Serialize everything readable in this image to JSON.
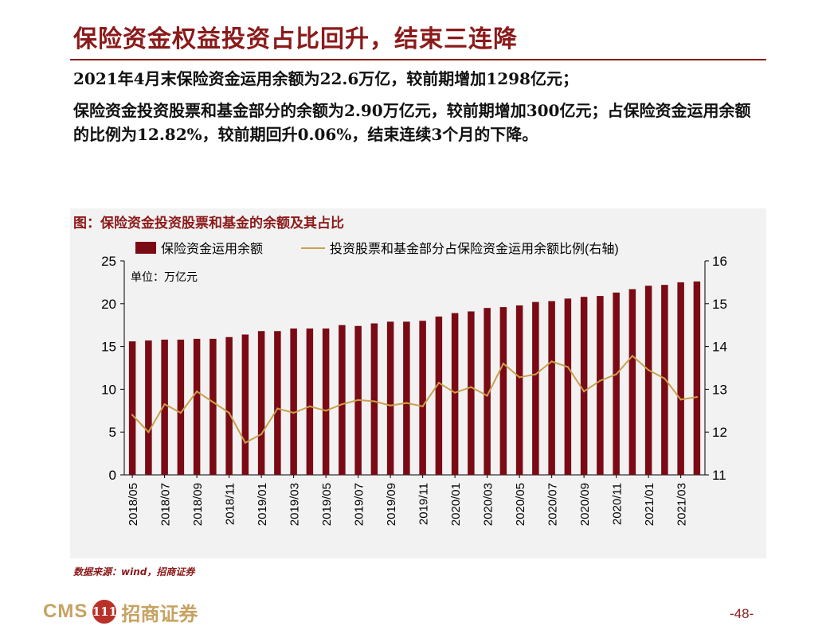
{
  "header": {
    "title": "保险资金权益投资占比回升，结束三连降"
  },
  "bullets": [
    "2021年4月末保险资金运用余额为22.6万亿，较前期增加1298亿元；",
    "保险资金投资股票和基金部分的余额为2.90万亿元，较前期增加300亿元；占保险资金运用余额的比例为12.82%，较前期回升0.06%，结束连续3个月的下降。"
  ],
  "figure": {
    "title": "图：保险资金投资股票和基金的余额及其占比",
    "source": "数据来源：wind，招商证券"
  },
  "footer": {
    "logo_en": "CMS",
    "logo_mark": "111",
    "logo_cn": "招商证券",
    "page": "-48-"
  },
  "colors": {
    "bar": "#7a0a14",
    "line": "#c9a04d",
    "accent": "#8b1a1a"
  },
  "chart_data": {
    "type": "bar+line",
    "legend": [
      "保险资金运用余额",
      "投资股票和基金部分占保险资金运用余额比例(右轴)"
    ],
    "unit_label": "单位：万亿元",
    "categories": [
      "2018/05",
      "2018/06",
      "2018/07",
      "2018/08",
      "2018/09",
      "2018/10",
      "2018/11",
      "2018/12",
      "2019/01",
      "2019/02",
      "2019/03",
      "2019/04",
      "2019/05",
      "2019/06",
      "2019/07",
      "2019/08",
      "2019/09",
      "2019/10",
      "2019/11",
      "2019/12",
      "2020/01",
      "2020/02",
      "2020/03",
      "2020/04",
      "2020/05",
      "2020/06",
      "2020/07",
      "2020/08",
      "2020/09",
      "2020/10",
      "2020/11",
      "2020/12",
      "2021/01",
      "2021/02",
      "2021/03",
      "2021/04"
    ],
    "x_tick_labels": [
      "2018/05",
      "2018/07",
      "2018/09",
      "2018/11",
      "2019/01",
      "2019/03",
      "2019/05",
      "2019/07",
      "2019/09",
      "2019/11",
      "2020/01",
      "2020/03",
      "2020/05",
      "2020/07",
      "2020/09",
      "2020/11",
      "2021/01",
      "2021/03"
    ],
    "series": [
      {
        "name": "保险资金运用余额",
        "type": "bar",
        "axis": "left",
        "values": [
          15.6,
          15.7,
          15.8,
          15.8,
          15.9,
          15.9,
          16.1,
          16.4,
          16.8,
          16.8,
          17.1,
          17.1,
          17.1,
          17.5,
          17.4,
          17.7,
          17.9,
          17.9,
          18.0,
          18.5,
          18.9,
          19.1,
          19.5,
          19.6,
          19.8,
          20.2,
          20.3,
          20.6,
          20.8,
          20.9,
          21.3,
          21.7,
          22.1,
          22.2,
          22.5,
          22.6
        ]
      },
      {
        "name": "投资股票和基金部分占保险资金运用余额比例(右轴)",
        "type": "line",
        "axis": "right",
        "values": [
          12.4,
          12.0,
          12.65,
          12.45,
          12.95,
          12.7,
          12.45,
          11.75,
          11.95,
          12.55,
          12.45,
          12.6,
          12.5,
          12.65,
          12.75,
          12.72,
          12.62,
          12.68,
          12.6,
          13.15,
          12.92,
          13.05,
          12.85,
          13.6,
          13.28,
          13.35,
          13.65,
          13.52,
          12.95,
          13.2,
          13.35,
          13.78,
          13.45,
          13.25,
          12.76,
          12.82
        ]
      }
    ],
    "y_left": {
      "min": 0,
      "max": 25,
      "ticks": [
        0,
        5,
        10,
        15,
        20,
        25
      ]
    },
    "y_right": {
      "min": 11,
      "max": 16,
      "ticks": [
        11,
        12,
        13,
        14,
        15,
        16
      ]
    },
    "legend_position": "top"
  }
}
